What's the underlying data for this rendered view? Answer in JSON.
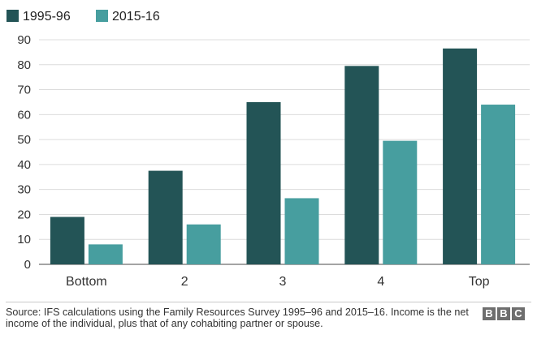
{
  "chart_data": {
    "type": "bar",
    "categories": [
      "Bottom",
      "2",
      "3",
      "4",
      "Top"
    ],
    "series": [
      {
        "name": "1995-96",
        "color": "#235456",
        "values": [
          19,
          37.5,
          65,
          79.5,
          86.5
        ]
      },
      {
        "name": "2015-16",
        "color": "#479e9f",
        "values": [
          8,
          16,
          26.5,
          49.5,
          64
        ]
      }
    ],
    "y_ticks": [
      0,
      10,
      20,
      30,
      40,
      50,
      60,
      70,
      80,
      90
    ],
    "ylim": [
      0,
      90
    ],
    "grid": true,
    "legend_position": "top-left"
  },
  "source": "Source: IFS calculations using the Family Resources Survey 1995–96 and 2015–16. Income is the net income of the individual, plus that of any cohabiting partner or spouse.",
  "logo": [
    "B",
    "B",
    "C"
  ]
}
